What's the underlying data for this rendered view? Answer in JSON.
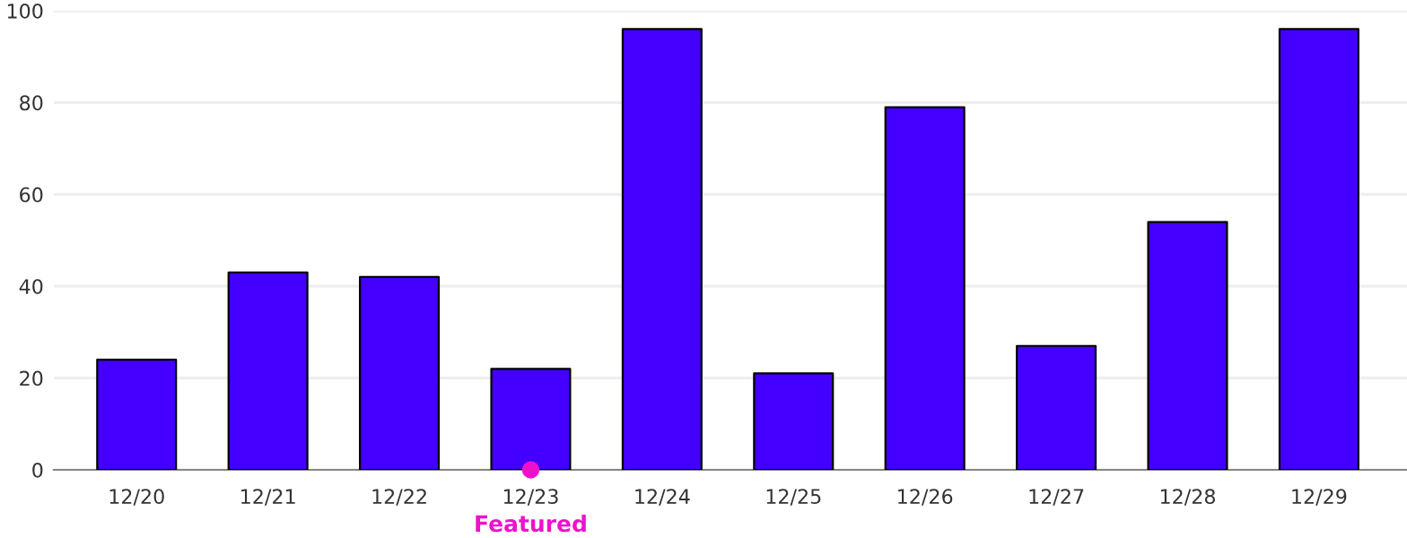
{
  "chart_data": {
    "type": "bar",
    "categories": [
      "12/20",
      "12/21",
      "12/22",
      "12/23",
      "12/24",
      "12/25",
      "12/26",
      "12/27",
      "12/28",
      "12/29"
    ],
    "values": [
      24,
      43,
      42,
      22,
      96,
      21,
      79,
      27,
      54,
      96
    ],
    "color": "#4400ff",
    "ylim": [
      0,
      100
    ],
    "yticks": [
      0,
      20,
      40,
      60,
      80,
      100
    ],
    "grid": "y",
    "annotations": [
      {
        "text": "Featured",
        "x": "12/23",
        "y": 0
      }
    ]
  }
}
